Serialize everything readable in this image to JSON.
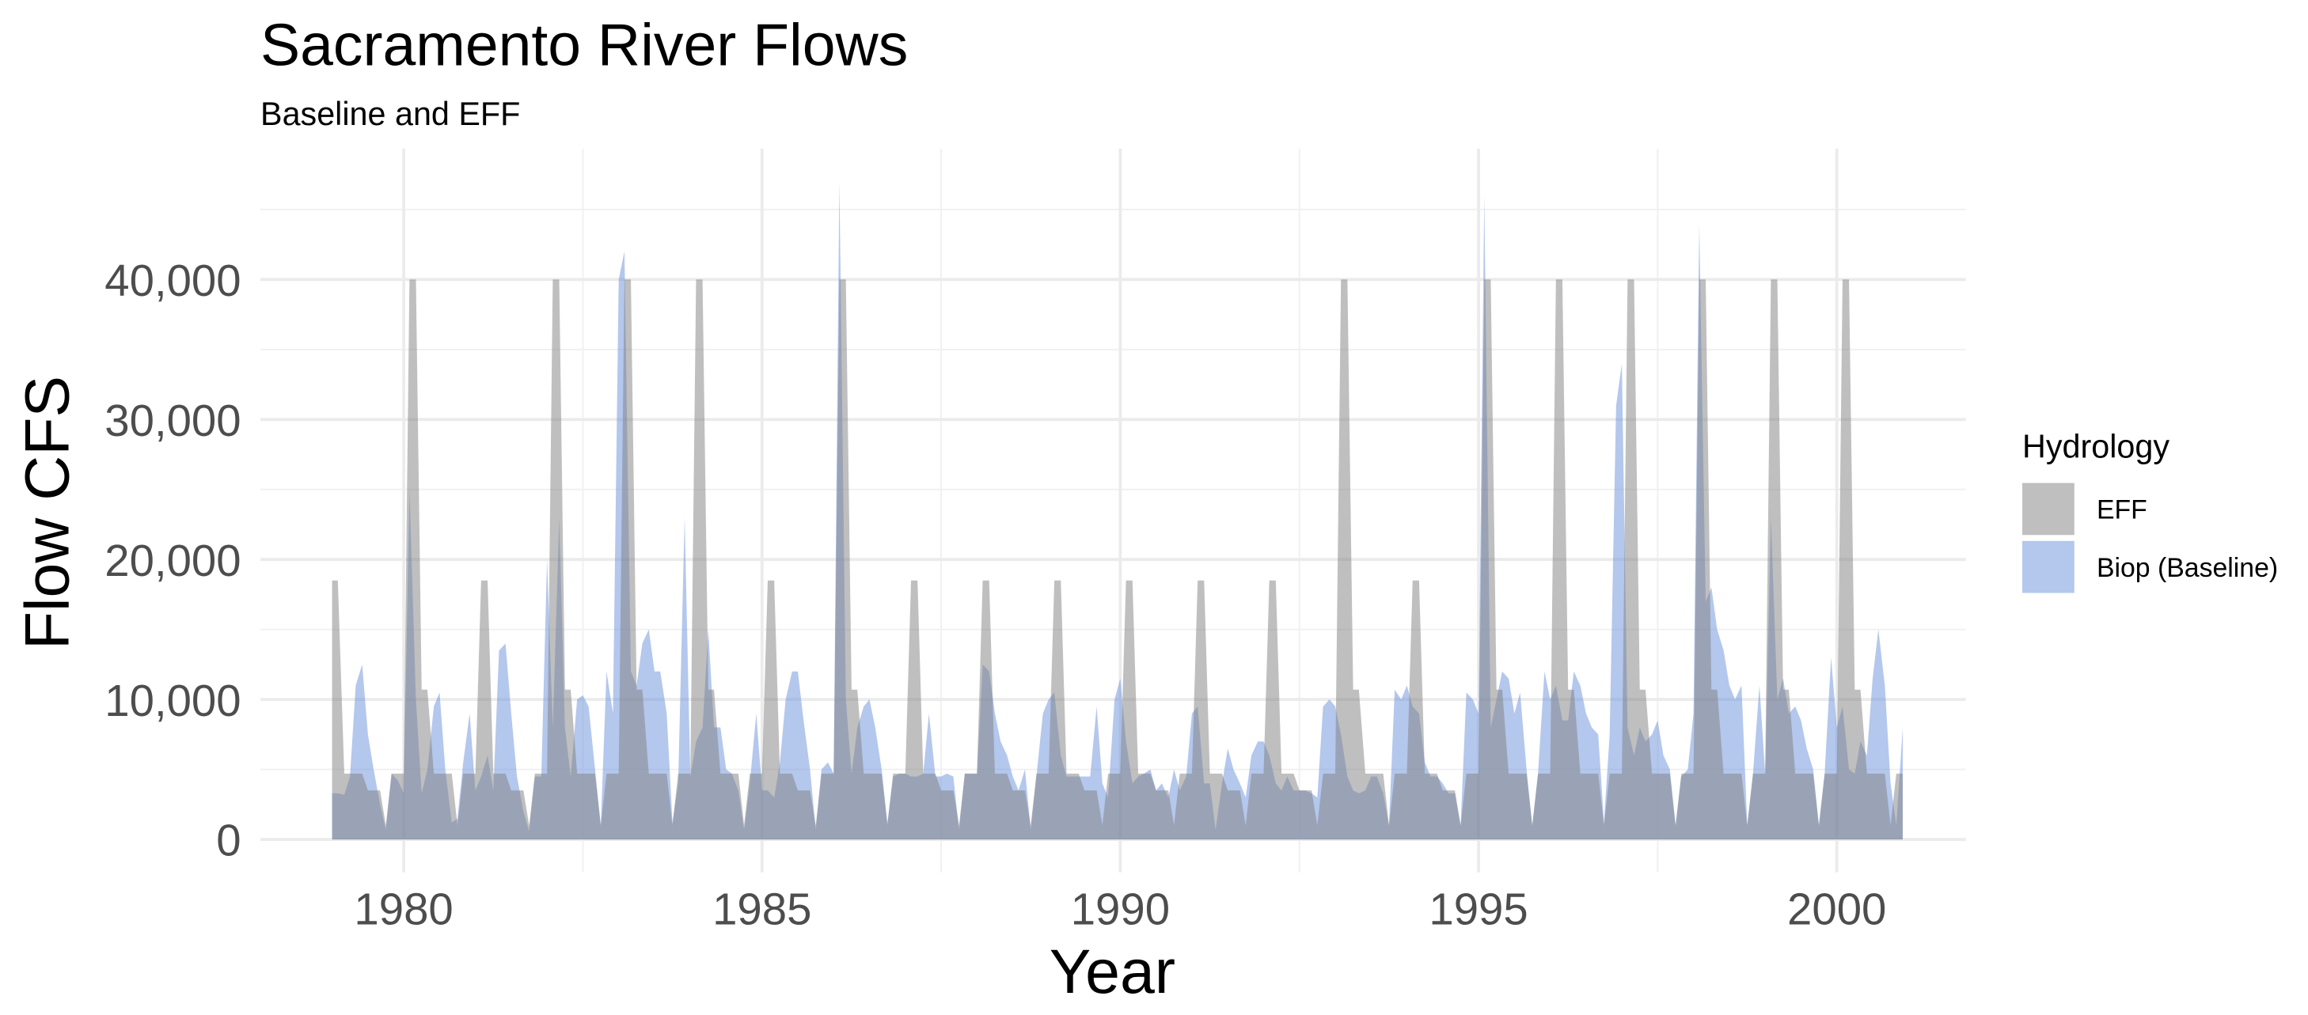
{
  "chart_data": {
    "type": "area",
    "title": "Sacramento River Flows",
    "subtitle": "Baseline and EFF",
    "x_label": "Year",
    "y_label": "Flow CFS",
    "legend_title": "Hydrology",
    "legend_position": "right",
    "grid": true,
    "xlim": [
      1978.0,
      2001.8
    ],
    "xticks": [
      1980,
      1985,
      1990,
      1995,
      2000
    ],
    "ylim": [
      -2350,
      49350
    ],
    "yticks": [
      {
        "value": 0,
        "label": "0"
      },
      {
        "value": 10000,
        "label": "10,000"
      },
      {
        "value": 20000,
        "label": "20,000"
      },
      {
        "value": 30000,
        "label": "30,000"
      },
      {
        "value": 40000,
        "label": "40,000"
      }
    ],
    "x": [
      1979.0,
      1979.08,
      1979.17,
      1979.25,
      1979.33,
      1979.42,
      1979.5,
      1979.58,
      1979.67,
      1979.75,
      1979.83,
      1979.92,
      1980.0,
      1980.08,
      1980.17,
      1980.25,
      1980.33,
      1980.42,
      1980.5,
      1980.58,
      1980.67,
      1980.75,
      1980.83,
      1980.92,
      1981.0,
      1981.08,
      1981.17,
      1981.25,
      1981.33,
      1981.42,
      1981.5,
      1981.58,
      1981.67,
      1981.75,
      1981.83,
      1981.92,
      1982.0,
      1982.08,
      1982.17,
      1982.25,
      1982.33,
      1982.42,
      1982.5,
      1982.58,
      1982.67,
      1982.75,
      1982.83,
      1982.92,
      1983.0,
      1983.08,
      1983.17,
      1983.25,
      1983.33,
      1983.42,
      1983.5,
      1983.58,
      1983.67,
      1983.75,
      1983.83,
      1983.92,
      1984.0,
      1984.08,
      1984.17,
      1984.25,
      1984.33,
      1984.42,
      1984.5,
      1984.58,
      1984.67,
      1984.75,
      1984.83,
      1984.92,
      1985.0,
      1985.08,
      1985.17,
      1985.25,
      1985.33,
      1985.42,
      1985.5,
      1985.58,
      1985.67,
      1985.75,
      1985.83,
      1985.92,
      1986.0,
      1986.08,
      1986.17,
      1986.25,
      1986.33,
      1986.42,
      1986.5,
      1986.58,
      1986.67,
      1986.75,
      1986.83,
      1986.92,
      1987.0,
      1987.08,
      1987.17,
      1987.25,
      1987.33,
      1987.42,
      1987.5,
      1987.58,
      1987.67,
      1987.75,
      1987.83,
      1987.92,
      1988.0,
      1988.08,
      1988.17,
      1988.25,
      1988.33,
      1988.42,
      1988.5,
      1988.58,
      1988.67,
      1988.75,
      1988.83,
      1988.92,
      1989.0,
      1989.08,
      1989.17,
      1989.25,
      1989.33,
      1989.42,
      1989.5,
      1989.58,
      1989.67,
      1989.75,
      1989.83,
      1989.92,
      1990.0,
      1990.08,
      1990.17,
      1990.25,
      1990.33,
      1990.42,
      1990.5,
      1990.58,
      1990.67,
      1990.75,
      1990.83,
      1990.92,
      1991.0,
      1991.08,
      1991.17,
      1991.25,
      1991.33,
      1991.42,
      1991.5,
      1991.58,
      1991.67,
      1991.75,
      1991.83,
      1991.92,
      1992.0,
      1992.08,
      1992.17,
      1992.25,
      1992.33,
      1992.42,
      1992.5,
      1992.58,
      1992.67,
      1992.75,
      1992.83,
      1992.92,
      1993.0,
      1993.08,
      1993.17,
      1993.25,
      1993.33,
      1993.42,
      1993.5,
      1993.58,
      1993.67,
      1993.75,
      1993.83,
      1993.92,
      1994.0,
      1994.08,
      1994.17,
      1994.25,
      1994.33,
      1994.42,
      1994.5,
      1994.58,
      1994.67,
      1994.75,
      1994.83,
      1994.92,
      1995.0,
      1995.08,
      1995.17,
      1995.25,
      1995.33,
      1995.42,
      1995.5,
      1995.58,
      1995.67,
      1995.75,
      1995.83,
      1995.92,
      1996.0,
      1996.08,
      1996.17,
      1996.25,
      1996.33,
      1996.42,
      1996.5,
      1996.58,
      1996.67,
      1996.75,
      1996.83,
      1996.92,
      1997.0,
      1997.08,
      1997.17,
      1997.25,
      1997.33,
      1997.42,
      1997.5,
      1997.58,
      1997.67,
      1997.75,
      1997.83,
      1997.92,
      1998.0,
      1998.08,
      1998.17,
      1998.25,
      1998.33,
      1998.42,
      1998.5,
      1998.58,
      1998.67,
      1998.75,
      1998.83,
      1998.92,
      1999.0,
      1999.08,
      1999.17,
      1999.25,
      1999.33,
      1999.42,
      1999.5,
      1999.58,
      1999.67,
      1999.75,
      1999.83,
      1999.92,
      2000.0,
      2000.08,
      2000.17,
      2000.25,
      2000.33,
      2000.42,
      2000.5,
      2000.58,
      2000.67,
      2000.75,
      2000.83,
      2000.92
    ],
    "series": [
      {
        "name": "Biop (Baseline)",
        "color": "#6a8fdb",
        "values": [
          3300,
          3300,
          3200,
          4500,
          11000,
          12500,
          7500,
          5000,
          2500,
          700,
          4700,
          4200,
          3300,
          25000,
          10000,
          3300,
          5000,
          9500,
          10500,
          5000,
          1200,
          1500,
          5500,
          9000,
          3500,
          4500,
          6000,
          3500,
          13500,
          14000,
          9000,
          4500,
          2000,
          600,
          4500,
          4500,
          20000,
          8000,
          23000,
          8000,
          4500,
          10000,
          10300,
          9500,
          5000,
          1000,
          12000,
          9000,
          40000,
          42000,
          12000,
          11000,
          14000,
          15000,
          12000,
          12000,
          9000,
          1200,
          4000,
          23000,
          4500,
          7000,
          8000,
          15000,
          8000,
          8000,
          5000,
          4700,
          3500,
          700,
          4000,
          9000,
          3500,
          3500,
          3000,
          5500,
          10000,
          12000,
          12000,
          8500,
          5000,
          700,
          5000,
          5500,
          4700,
          47000,
          10000,
          4700,
          8000,
          9500,
          10000,
          8000,
          5000,
          1200,
          4500,
          4700,
          4700,
          4500,
          4500,
          4700,
          9000,
          4500,
          4500,
          4700,
          4500,
          700,
          4700,
          4700,
          4700,
          12500,
          12000,
          9000,
          7000,
          6000,
          4500,
          3500,
          5000,
          700,
          4500,
          9000,
          10000,
          10500,
          6000,
          4500,
          4500,
          4500,
          4500,
          4500,
          9500,
          4000,
          3000,
          10000,
          11500,
          7000,
          4000,
          4500,
          4700,
          5000,
          3500,
          4000,
          3000,
          5000,
          3500,
          4500,
          9000,
          9500,
          4000,
          4000,
          700,
          4000,
          6500,
          5000,
          4000,
          3000,
          6000,
          7000,
          7000,
          6000,
          4000,
          3500,
          4500,
          3500,
          3500,
          3500,
          3300,
          3000,
          9500,
          10000,
          9500,
          7500,
          4500,
          3500,
          3300,
          3500,
          4500,
          4500,
          3300,
          1000,
          10700,
          10000,
          11000,
          9500,
          9000,
          5500,
          4500,
          4500,
          4000,
          3300,
          3300,
          1000,
          10500,
          10000,
          9000,
          46000,
          8000,
          10000,
          12000,
          11500,
          9000,
          10500,
          5000,
          1000,
          4700,
          12000,
          10000,
          11000,
          8500,
          8500,
          12000,
          11000,
          9000,
          8000,
          7500,
          1200,
          7500,
          31000,
          34000,
          8000,
          6000,
          8000,
          7000,
          7500,
          8500,
          6000,
          5000,
          1000,
          4500,
          5000,
          9000,
          44000,
          17000,
          18000,
          15000,
          13500,
          11000,
          10000,
          11000,
          1000,
          4700,
          11000,
          4700,
          23000,
          10000,
          11500,
          9000,
          9500,
          8500,
          6500,
          5000,
          1000,
          4700,
          13000,
          8000,
          9500,
          5000,
          4700,
          7000,
          6000,
          11500,
          15000,
          11000,
          4000,
          1000,
          8000
        ]
      },
      {
        "name": "EFF",
        "color": "#7f7f7f",
        "values": [
          18500,
          18500,
          4700,
          4700,
          4700,
          4700,
          3500,
          3500,
          3500,
          1000,
          4700,
          4700,
          4700,
          40000,
          40000,
          10700,
          10700,
          4700,
          4700,
          4700,
          4700,
          1000,
          4700,
          4700,
          4700,
          18500,
          18500,
          4700,
          4700,
          4700,
          3500,
          3500,
          3500,
          1000,
          4700,
          4700,
          4700,
          40000,
          40000,
          10700,
          10700,
          4700,
          4700,
          4700,
          4700,
          1000,
          4700,
          4700,
          4700,
          40000,
          40000,
          10700,
          10700,
          4700,
          4700,
          4700,
          4700,
          1000,
          4700,
          4700,
          4700,
          40000,
          40000,
          10700,
          10700,
          4700,
          4700,
          4700,
          4700,
          1000,
          4700,
          4700,
          4700,
          18500,
          18500,
          4700,
          4700,
          4700,
          3500,
          3500,
          3500,
          1000,
          4700,
          4700,
          4700,
          40000,
          40000,
          10700,
          10700,
          4700,
          4700,
          4700,
          4700,
          1000,
          4700,
          4700,
          4700,
          18500,
          18500,
          4700,
          4700,
          4700,
          3500,
          3500,
          3500,
          1000,
          4700,
          4700,
          4700,
          18500,
          18500,
          4700,
          4700,
          4700,
          3500,
          3500,
          3500,
          1000,
          4700,
          4700,
          4700,
          18500,
          18500,
          4700,
          4700,
          4700,
          3500,
          3500,
          3500,
          1000,
          4700,
          4700,
          4700,
          18500,
          18500,
          4700,
          4700,
          4700,
          3500,
          3500,
          3500,
          1000,
          4700,
          4700,
          4700,
          18500,
          18500,
          4700,
          4700,
          4700,
          3500,
          3500,
          3500,
          1000,
          4700,
          4700,
          4700,
          18500,
          18500,
          4700,
          4700,
          4700,
          3500,
          3500,
          3500,
          1000,
          4700,
          4700,
          4700,
          40000,
          40000,
          10700,
          10700,
          4700,
          4700,
          4700,
          4700,
          1000,
          4700,
          4700,
          4700,
          18500,
          18500,
          4700,
          4700,
          4700,
          3500,
          3500,
          3500,
          1000,
          4700,
          4700,
          4700,
          40000,
          40000,
          10700,
          10700,
          4700,
          4700,
          4700,
          4700,
          1000,
          4700,
          4700,
          4700,
          40000,
          40000,
          10700,
          10700,
          4700,
          4700,
          4700,
          4700,
          1000,
          4700,
          4700,
          4700,
          40000,
          40000,
          10700,
          10700,
          4700,
          4700,
          4700,
          4700,
          1000,
          4700,
          4700,
          4700,
          40000,
          40000,
          10700,
          10700,
          4700,
          4700,
          4700,
          4700,
          1000,
          4700,
          4700,
          4700,
          40000,
          40000,
          10700,
          10700,
          4700,
          4700,
          4700,
          4700,
          1000,
          4700,
          4700,
          4700,
          40000,
          40000,
          10700,
          10700,
          4700,
          4700,
          4700,
          4700,
          1000,
          4700,
          4700
        ]
      }
    ]
  }
}
